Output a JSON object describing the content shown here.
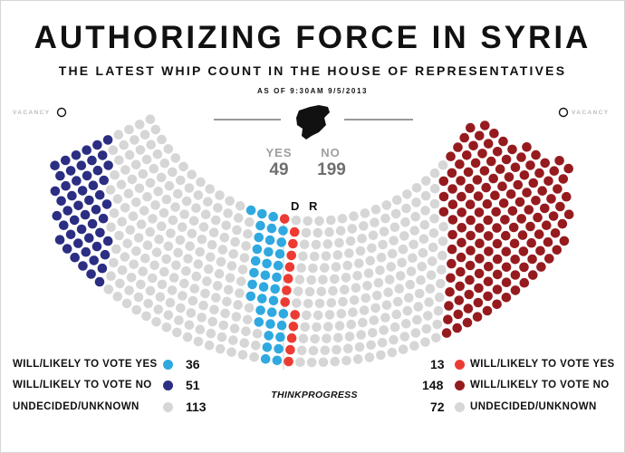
{
  "header": {
    "title": "AUTHORIZING FORCE IN SYRIA",
    "subtitle": "THE LATEST WHIP COUNT IN THE HOUSE OF REPRESENTATIVES",
    "as_of": "AS OF 9:30AM 9/5/2013"
  },
  "vacancy_label": "VACANCY",
  "totals": {
    "yes_label": "YES",
    "yes_value": "49",
    "no_label": "NO",
    "no_value": "199"
  },
  "parties": {
    "dem": "D",
    "rep": "R"
  },
  "legend_dem": [
    {
      "label": "WILL/LIKELY TO VOTE YES",
      "count": "36"
    },
    {
      "label": "WILL/LIKELY TO VOTE NO",
      "count": "51"
    },
    {
      "label": "UNDECIDED/UNKNOWN",
      "count": "113"
    }
  ],
  "legend_rep": [
    {
      "label": "WILL/LIKELY TO VOTE YES",
      "count": "13"
    },
    {
      "label": "WILL/LIKELY TO VOTE NO",
      "count": "148"
    },
    {
      "label": "UNDECIDED/UNKNOWN",
      "count": "72"
    }
  ],
  "brand": "THINKPROGRESS",
  "colors": {
    "dem_yes": "#2fa9e0",
    "dem_no": "#2b2e82",
    "rep_yes": "#ec3b33",
    "rep_no": "#961b1e",
    "undecided": "#d6d6d6"
  },
  "icons": {
    "map": "syria-map-icon",
    "vacancy": "vacancy-seat-icon"
  }
}
